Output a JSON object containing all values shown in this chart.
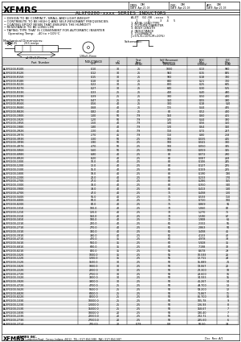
{
  "title": "ALXF0200-xxxx SERIES INDUCTORS",
  "company": "XFMRS",
  "features": [
    "DESIGN TO BE COMPACT, SMALL AND LIGHT-WEIGHT",
    "CONTRIBUTE TO BE HIGH Q AND SELF-RESONANT FREQUENCIES",
    "COATING EPOXY RESIN THAT ENSURES THE HUMIDITY",
    "RESISTANCE TO BE LONG LIFE",
    "TAPING TYPE THAT IS CONVENIENT FOR AUTOMATIC INSERTER"
  ],
  "operating_temp": "Operating Temp:   -40 to +105°C",
  "part_number_label": "ALXT  02.00 - xxxx  S",
  "part_number_positions": "   1      2       3    4   5",
  "part_number_notes": [
    "1. AXIAL LEAD TYPE",
    "2. OUTSIDE DIAMETER",
    "3. BODY LENGTH",
    "4. INDUCTANCE",
    "5. TOLERANCE",
    "(J=5%,K=10%,M=20%)"
  ],
  "mech_dim_label": "Mechanical Dimensions:",
  "schematic_label": "Schematic:",
  "table_col_widths": [
    62,
    26,
    14,
    20,
    30,
    24,
    18
  ],
  "table_rows": [
    [
      "ALXF0200-R10K",
      "0.10",
      "30",
      "25",
      "1000",
      "0.13",
      "980"
    ],
    [
      "ALXF0200-R12K",
      "0.12",
      "30",
      "25",
      "950",
      "0.15",
      "835"
    ],
    [
      "ALXF0200-R15K",
      "0.15",
      "30",
      "25",
      "900",
      "0.18",
      "780"
    ],
    [
      "ALXF0200-R18K",
      "0.18",
      "30",
      "25",
      "840",
      "0.21",
      "700"
    ],
    [
      "ALXF0200-R22K",
      "0.22",
      "30",
      "25",
      "800",
      "0.25",
      "645"
    ],
    [
      "ALXF0200-R27K",
      "0.27",
      "30",
      "25",
      "640",
      "0.30",
      "525"
    ],
    [
      "ALXF0200-R33K",
      "0.33",
      "25",
      "25",
      "410",
      "0.40",
      "490"
    ],
    [
      "ALXF0200-R39K",
      "0.39",
      "25",
      "25",
      "380",
      "0.50",
      "430"
    ],
    [
      "ALXF0200-R47K",
      "0.47",
      "25",
      "25",
      "350",
      "0.55",
      "390"
    ],
    [
      "ALXF0200-R56K",
      "0.56",
      "40",
      "25",
      "300",
      "0.18",
      "510"
    ],
    [
      "ALXF0200-R68K",
      "0.68",
      "40",
      "25",
      "115",
      "0.44",
      "485"
    ],
    [
      "ALXF0200-R82K",
      "0.82",
      "40",
      "25",
      "80",
      "0.52",
      "430"
    ],
    [
      "ALXF0200-1R0K",
      "1.00",
      "50",
      "7.9",
      "150",
      "0.60",
      "455"
    ],
    [
      "ALXF0200-1R2K",
      "1.20",
      "50",
      "7.9",
      "135",
      "0.44",
      "330"
    ],
    [
      "ALXF0200-1R5K",
      "1.50",
      "40",
      "7.9",
      "130",
      "0.56",
      "350"
    ],
    [
      "ALXF0200-1R8K",
      "1.80",
      "40",
      "7.9",
      "120",
      "0.64",
      "310"
    ],
    [
      "ALXF0200-2R2K",
      "2.20",
      "45",
      "7.9",
      "110",
      "0.72",
      "287"
    ],
    [
      "ALXF0200-2R7K",
      "2.70",
      "45",
      "7.9",
      "110",
      "0.80",
      "258"
    ],
    [
      "ALXF0200-3R3K",
      "3.30",
      "50",
      "2.5",
      "100",
      "0.035",
      "415"
    ],
    [
      "ALXF0200-3R9K",
      "3.90",
      "50",
      "2.5",
      "100",
      "0.041",
      "380"
    ],
    [
      "ALXF0200-4R7K",
      "4.70",
      "50",
      "2.5",
      "100",
      "0.050",
      "345"
    ],
    [
      "ALXF0200-5R6K",
      "5.60",
      "50",
      "2.5",
      "100",
      "0.059",
      "315"
    ],
    [
      "ALXF0200-6R8K",
      "6.80",
      "40",
      "2.5",
      "80",
      "0.072",
      "290"
    ],
    [
      "ALXF0200-8R2K",
      "8.20",
      "40",
      "2.5",
      "80",
      "0.087",
      "268"
    ],
    [
      "ALXF0200-100K",
      "10.0",
      "40",
      "2.5",
      "80",
      "0.106",
      "245"
    ],
    [
      "ALXF0200-120K",
      "12.0",
      "40",
      "2.5",
      "80",
      "0.127",
      "225"
    ],
    [
      "ALXF0200-150K",
      "15.0",
      "40",
      "2.5",
      "80",
      "0.159",
      "205"
    ],
    [
      "ALXF0200-180K",
      "18.0",
      "40",
      "2.5",
      "80",
      "0.190",
      "190"
    ],
    [
      "ALXF0200-220K",
      "22.0",
      "40",
      "2.5",
      "80",
      "0.233",
      "170"
    ],
    [
      "ALXF0200-270K",
      "27.0",
      "40",
      "2.5",
      "80",
      "0.286",
      "155"
    ],
    [
      "ALXF0200-330K",
      "33.0",
      "40",
      "2.5",
      "80",
      "0.350",
      "140"
    ],
    [
      "ALXF0200-390K",
      "39.0",
      "40",
      "2.5",
      "80",
      "0.413",
      "130"
    ],
    [
      "ALXF0200-470K",
      "47.0",
      "40",
      "2.5",
      "75",
      "0.498",
      "120"
    ],
    [
      "ALXF0200-560K",
      "56.0",
      "40",
      "2.5",
      "75",
      "0.593",
      "110"
    ],
    [
      "ALXF0200-680K",
      "68.0",
      "40",
      "2.5",
      "75",
      "0.720",
      "100"
    ],
    [
      "ALXF0200-820K",
      "82.0",
      "40",
      "2.5",
      "75",
      "0.869",
      "91"
    ],
    [
      "ALXF0200-101K",
      "100.0",
      "40",
      "2.5",
      "70",
      "1.060",
      "82"
    ],
    [
      "ALXF0200-121K",
      "120.0",
      "40",
      "2.5",
      "70",
      "1.270",
      "75"
    ],
    [
      "ALXF0200-151K",
      "150.0",
      "40",
      "2.5",
      "70",
      "1.590",
      "67"
    ],
    [
      "ALXF0200-181K",
      "180.0",
      "40",
      "2.5",
      "70",
      "1.908",
      "61"
    ],
    [
      "ALXF0200-221K",
      "220.0",
      "40",
      "2.5",
      "65",
      "2.332",
      "55"
    ],
    [
      "ALXF0200-271K",
      "270.0",
      "40",
      "2.5",
      "65",
      "2.863",
      "50"
    ],
    [
      "ALXF0200-331K",
      "330.0",
      "40",
      "2.5",
      "65",
      "3.498",
      "45"
    ],
    [
      "ALXF0200-391K",
      "390.0",
      "40",
      "2.5",
      "65",
      "4.133",
      "42"
    ],
    [
      "ALXF0200-471K",
      "470.0",
      "35",
      "2.5",
      "60",
      "4.978",
      "38"
    ],
    [
      "ALXF0200-561K",
      "560.0",
      "35",
      "2.5",
      "60",
      "5.928",
      "35"
    ],
    [
      "ALXF0200-681K",
      "680.0",
      "35",
      "2.5",
      "60",
      "7.198",
      "32"
    ],
    [
      "ALXF0200-821K",
      "820.0",
      "35",
      "2.5",
      "55",
      "8.678",
      "29"
    ],
    [
      "ALXF0200-102K",
      "1000.0",
      "35",
      "2.5",
      "55",
      "10.593",
      "26"
    ],
    [
      "ALXF0200-122K",
      "1200.0",
      "35",
      "2.5",
      "55",
      "12.711",
      "24"
    ],
    [
      "ALXF0200-152K",
      "1500.0",
      "30",
      "2.5",
      "50",
      "15.889",
      "21"
    ],
    [
      "ALXF0200-182K",
      "1800.0",
      "30",
      "2.5",
      "50",
      "19.067",
      "20"
    ],
    [
      "ALXF0200-222K",
      "2200.0",
      "30",
      "2.5",
      "50",
      "23.300",
      "18"
    ],
    [
      "ALXF0200-272K",
      "2700.0",
      "30",
      "2.5",
      "50",
      "28.600",
      "16"
    ],
    [
      "ALXF0200-332K",
      "3300.0",
      "30",
      "2.5",
      "50",
      "34.933",
      "15"
    ],
    [
      "ALXF0200-392K",
      "3900.0",
      "30",
      "2.5",
      "50",
      "41.267",
      "14"
    ],
    [
      "ALXF0200-472K",
      "4700.0",
      "25",
      "2.5",
      "50",
      "49.700",
      "13"
    ],
    [
      "ALXF0200-562K",
      "5600.0",
      "25",
      "2.5",
      "50",
      "59.200",
      "12"
    ],
    [
      "ALXF0200-682K",
      "6800.0",
      "25",
      "2.5",
      "50",
      "71.867",
      "11"
    ],
    [
      "ALXF0200-822K",
      "8200.0",
      "25",
      "2.5",
      "50",
      "86.700",
      "10"
    ],
    [
      "ALXF0200-103K",
      "10000.0",
      "25",
      "2.5",
      "50",
      "105.78",
      "9"
    ],
    [
      "ALXF0200-123K",
      "12000.0",
      "25",
      "2.5",
      "50",
      "126.93",
      "8"
    ],
    [
      "ALXF0200-153K",
      "15000.0",
      "25",
      "2.5",
      "50",
      "158.67",
      "7"
    ],
    [
      "ALXF0200-183K",
      "18000.0",
      "20",
      "2.5",
      "50",
      "190.40",
      "7"
    ],
    [
      "ALXF0200-223K",
      "22000.0",
      "20",
      "2.5",
      "50",
      "232.71",
      "6"
    ],
    [
      "ALXF0200-273K",
      "27000.0",
      "20",
      "2.5",
      "50",
      "285.60",
      "6"
    ],
    [
      "ALXF0200-2714",
      "270.00",
      "20",
      "0.79",
      "0.8",
      "50.50",
      "39"
    ]
  ],
  "bg_color": "#ffffff"
}
